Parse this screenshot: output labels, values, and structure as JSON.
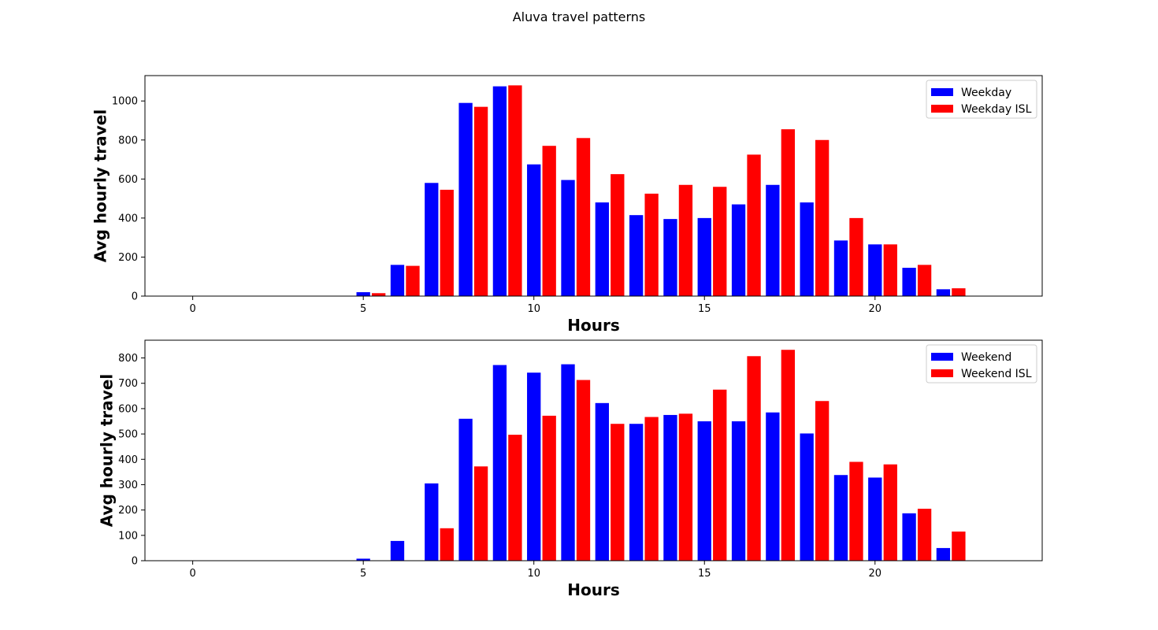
{
  "figure": {
    "title": "Aluva travel patterns"
  },
  "chart_data": [
    {
      "type": "bar",
      "xlabel": "Hours",
      "ylabel": "Avg hourly travel",
      "xlim": [
        -1.4,
        24.9
      ],
      "ylim": [
        0,
        1130
      ],
      "xticks": [
        0,
        5,
        10,
        15,
        20
      ],
      "yticks": [
        0,
        200,
        400,
        600,
        800,
        1000
      ],
      "legend_position": "top-right",
      "hours": [
        5,
        6,
        7,
        8,
        9,
        10,
        11,
        12,
        13,
        14,
        15,
        16,
        17,
        18,
        19,
        20,
        21,
        22
      ],
      "series": [
        {
          "name": "Weekday",
          "color": "#0000ff",
          "offset": 0,
          "values": [
            20,
            160,
            580,
            990,
            1075,
            675,
            595,
            480,
            415,
            395,
            400,
            470,
            570,
            480,
            285,
            265,
            145,
            35
          ]
        },
        {
          "name": "Weekday ISL",
          "color": "#ff0000",
          "offset": 0.45,
          "values": [
            15,
            155,
            545,
            970,
            1080,
            770,
            810,
            625,
            525,
            570,
            560,
            725,
            855,
            800,
            400,
            265,
            160,
            40
          ]
        }
      ]
    },
    {
      "type": "bar",
      "xlabel": "Hours",
      "ylabel": "Avg hourly travel",
      "xlim": [
        -1.4,
        24.9
      ],
      "ylim": [
        0,
        870
      ],
      "xticks": [
        0,
        5,
        10,
        15,
        20
      ],
      "yticks": [
        0,
        100,
        200,
        300,
        400,
        500,
        600,
        700,
        800
      ],
      "legend_position": "top-right",
      "hours": [
        5,
        6,
        7,
        8,
        9,
        10,
        11,
        12,
        13,
        14,
        15,
        16,
        17,
        18,
        19,
        20,
        21,
        22
      ],
      "series": [
        {
          "name": "Weekend",
          "color": "#0000ff",
          "offset": 0,
          "values": [
            8,
            78,
            305,
            560,
            772,
            742,
            775,
            622,
            540,
            575,
            550,
            550,
            585,
            502,
            338,
            328,
            187,
            50
          ]
        },
        {
          "name": "Weekend ISL",
          "color": "#ff0000",
          "offset": 0.45,
          "values": [
            0,
            0,
            128,
            372,
            497,
            572,
            713,
            540,
            567,
            580,
            675,
            807,
            832,
            630,
            390,
            380,
            205,
            115
          ]
        }
      ]
    }
  ]
}
